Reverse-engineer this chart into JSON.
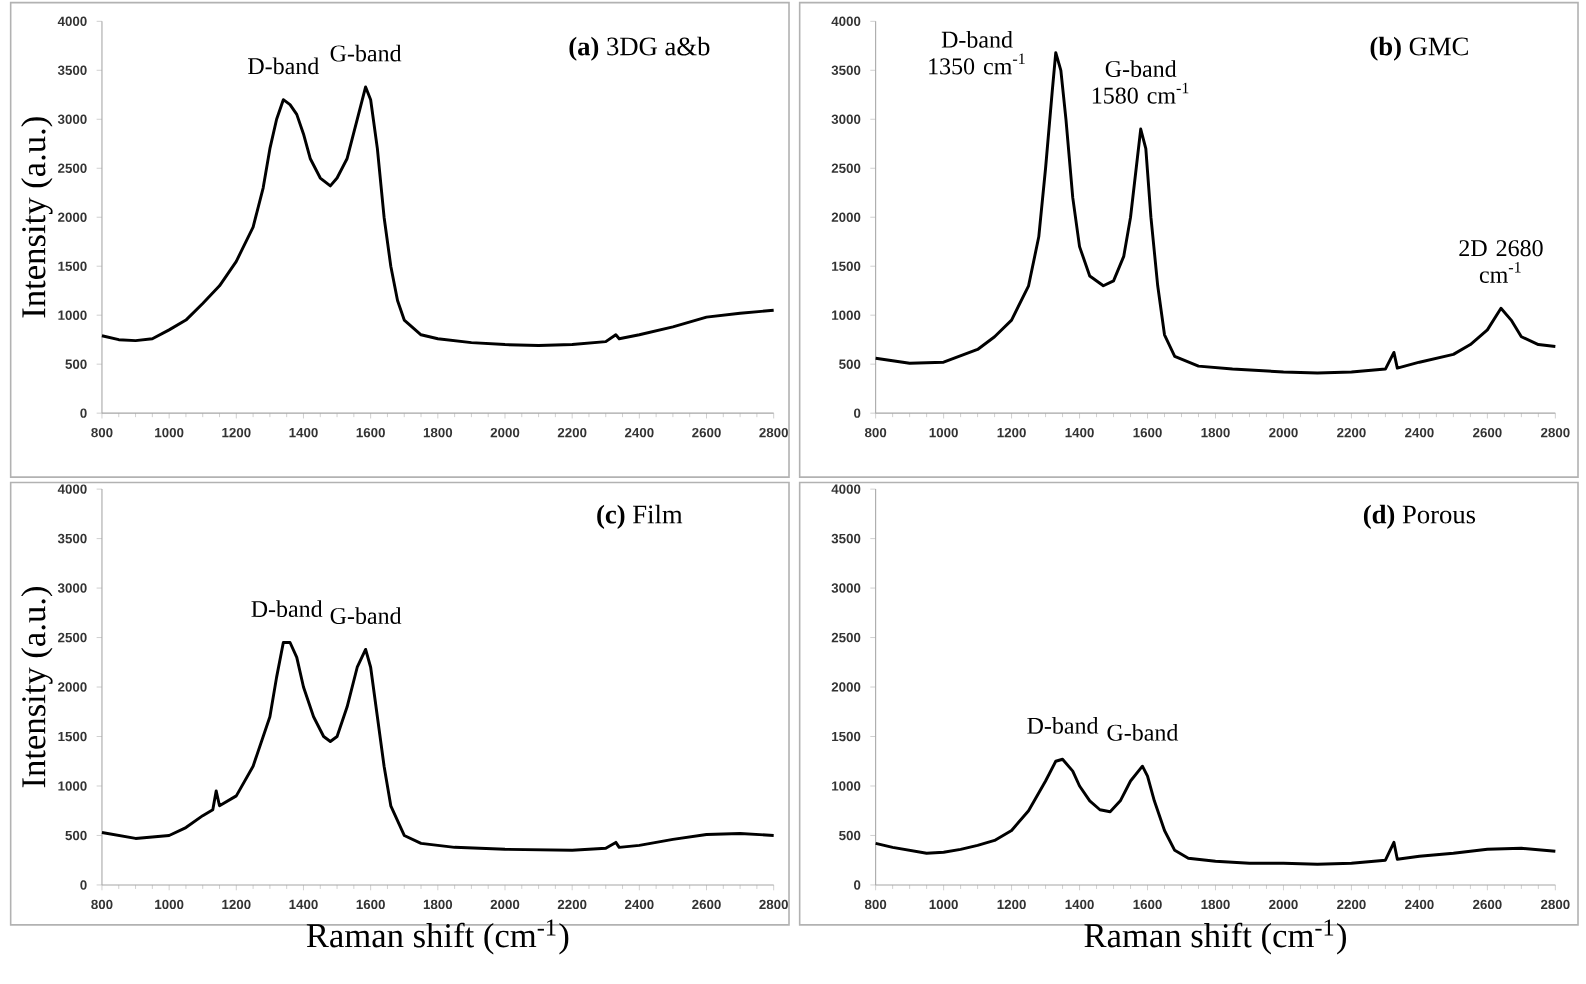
{
  "chart_data": [
    {
      "type": "line",
      "title": "**(a)** 3DG a&b",
      "ylabel": "Intensity (a.u.)",
      "xlim": [
        800,
        2800
      ],
      "xticks": [
        800,
        1000,
        1200,
        1400,
        1600,
        1800,
        2000,
        2200,
        2400,
        2600,
        2800
      ],
      "ylim": [
        0,
        4000
      ],
      "yticks": [
        0,
        500,
        1000,
        1500,
        2000,
        2500,
        3000,
        3500,
        4000
      ],
      "series": [
        {
          "color": "#000000",
          "x": [
            800,
            850,
            900,
            950,
            1000,
            1050,
            1100,
            1150,
            1200,
            1250,
            1280,
            1300,
            1320,
            1340,
            1360,
            1380,
            1400,
            1420,
            1450,
            1480,
            1500,
            1530,
            1560,
            1585,
            1600,
            1620,
            1640,
            1660,
            1680,
            1700,
            1750,
            1800,
            1900,
            2000,
            2100,
            2200,
            2300,
            2330,
            2340,
            2400,
            2500,
            2600,
            2700,
            2800
          ],
          "values": [
            790,
            750,
            740,
            760,
            850,
            950,
            1120,
            1300,
            1550,
            1900,
            2300,
            2700,
            3000,
            3200,
            3150,
            3050,
            2850,
            2600,
            2400,
            2320,
            2400,
            2600,
            3000,
            3330,
            3200,
            2700,
            2000,
            1500,
            1150,
            950,
            800,
            760,
            720,
            700,
            690,
            700,
            730,
            800,
            760,
            800,
            880,
            980,
            1020,
            1050
          ]
        }
      ],
      "annotations": [
        {
          "text": "D-band",
          "x": 1340,
          "y": 3200
        },
        {
          "text": "G-band",
          "x": 1585,
          "y": 3330
        }
      ]
    },
    {
      "type": "line",
      "title": "**(b)** GMC",
      "xlim": [
        800,
        2800
      ],
      "xticks": [
        800,
        1000,
        1200,
        1400,
        1600,
        1800,
        2000,
        2200,
        2400,
        2600,
        2800
      ],
      "ylim": [
        0,
        4000
      ],
      "yticks": [
        0,
        500,
        1000,
        1500,
        2000,
        2500,
        3000,
        3500,
        4000
      ],
      "series": [
        {
          "color": "#000000",
          "x": [
            800,
            900,
            1000,
            1100,
            1150,
            1200,
            1250,
            1280,
            1300,
            1320,
            1330,
            1345,
            1360,
            1380,
            1400,
            1430,
            1470,
            1500,
            1530,
            1550,
            1570,
            1580,
            1595,
            1610,
            1630,
            1650,
            1680,
            1750,
            1850,
            2000,
            2100,
            2200,
            2300,
            2325,
            2335,
            2400,
            2500,
            2550,
            2600,
            2640,
            2670,
            2700,
            2750,
            2800
          ],
          "values": [
            560,
            510,
            520,
            650,
            780,
            950,
            1300,
            1800,
            2500,
            3300,
            3680,
            3500,
            3000,
            2200,
            1700,
            1400,
            1300,
            1350,
            1600,
            2000,
            2600,
            2900,
            2700,
            2000,
            1300,
            800,
            580,
            480,
            450,
            420,
            410,
            420,
            450,
            620,
            460,
            520,
            600,
            700,
            850,
            1070,
            950,
            780,
            700,
            680
          ]
        }
      ],
      "annotations": [
        {
          "text": "D-band 1350 cm$^{-1}$",
          "x": 1330,
          "y": 3680
        },
        {
          "text": "G-band 1580 cm$^{-1}$",
          "x": 1580,
          "y": 2900
        },
        {
          "text": "2D 2680 cm$^{-1}$",
          "x": 2640,
          "y": 1070
        }
      ]
    },
    {
      "type": "line",
      "title": "**(c)** Film",
      "xlabel": "Raman shift (cm$^{-1}$)",
      "ylabel": "Intensity (a.u.)",
      "xlim": [
        800,
        2800
      ],
      "xticks": [
        800,
        1000,
        1200,
        1400,
        1600,
        1800,
        2000,
        2200,
        2400,
        2600,
        2800
      ],
      "ylim": [
        0,
        4000
      ],
      "yticks": [
        0,
        500,
        1000,
        1500,
        2000,
        2500,
        3000,
        3500,
        4000
      ],
      "series": [
        {
          "color": "#000000",
          "x": [
            800,
            850,
            900,
            1000,
            1050,
            1100,
            1130,
            1140,
            1150,
            1200,
            1250,
            1300,
            1320,
            1340,
            1360,
            1380,
            1400,
            1430,
            1460,
            1480,
            1500,
            1530,
            1560,
            1585,
            1600,
            1620,
            1640,
            1660,
            1700,
            1750,
            1850,
            2000,
            2200,
            2300,
            2330,
            2340,
            2400,
            2500,
            2600,
            2700,
            2800
          ],
          "values": [
            530,
            500,
            470,
            500,
            580,
            700,
            760,
            950,
            800,
            900,
            1200,
            1700,
            2100,
            2450,
            2450,
            2300,
            2000,
            1700,
            1500,
            1450,
            1500,
            1800,
            2200,
            2380,
            2200,
            1700,
            1200,
            800,
            500,
            420,
            380,
            360,
            350,
            370,
            430,
            380,
            400,
            460,
            510,
            520,
            500
          ]
        }
      ],
      "annotations": [
        {
          "text": "D-band",
          "x": 1350,
          "y": 2450
        },
        {
          "text": "G-band",
          "x": 1585,
          "y": 2380
        }
      ]
    },
    {
      "type": "line",
      "title": "**(d)** Porous",
      "xlabel": "Raman shift (cm$^{-1}$)",
      "xlim": [
        800,
        2800
      ],
      "xticks": [
        800,
        1000,
        1200,
        1400,
        1600,
        1800,
        2000,
        2200,
        2400,
        2600,
        2800
      ],
      "ylim": [
        0,
        4000
      ],
      "yticks": [
        0,
        500,
        1000,
        1500,
        2000,
        2500,
        3000,
        3500,
        4000
      ],
      "series": [
        {
          "color": "#000000",
          "x": [
            800,
            850,
            900,
            950,
            1000,
            1050,
            1100,
            1150,
            1200,
            1250,
            1300,
            1330,
            1350,
            1380,
            1400,
            1430,
            1460,
            1490,
            1520,
            1550,
            1585,
            1600,
            1620,
            1650,
            1680,
            1720,
            1800,
            1900,
            2000,
            2100,
            2200,
            2300,
            2325,
            2335,
            2400,
            2500,
            2600,
            2700,
            2800
          ],
          "values": [
            420,
            380,
            350,
            320,
            330,
            360,
            400,
            450,
            550,
            750,
            1050,
            1250,
            1270,
            1150,
            1000,
            850,
            760,
            740,
            850,
            1050,
            1200,
            1100,
            850,
            550,
            350,
            270,
            240,
            220,
            220,
            210,
            220,
            250,
            430,
            260,
            290,
            320,
            360,
            370,
            340
          ]
        }
      ],
      "annotations": [
        {
          "text": "D-band",
          "x": 1350,
          "y": 1270
        },
        {
          "text": "G-band",
          "x": 1585,
          "y": 1200
        }
      ]
    }
  ]
}
